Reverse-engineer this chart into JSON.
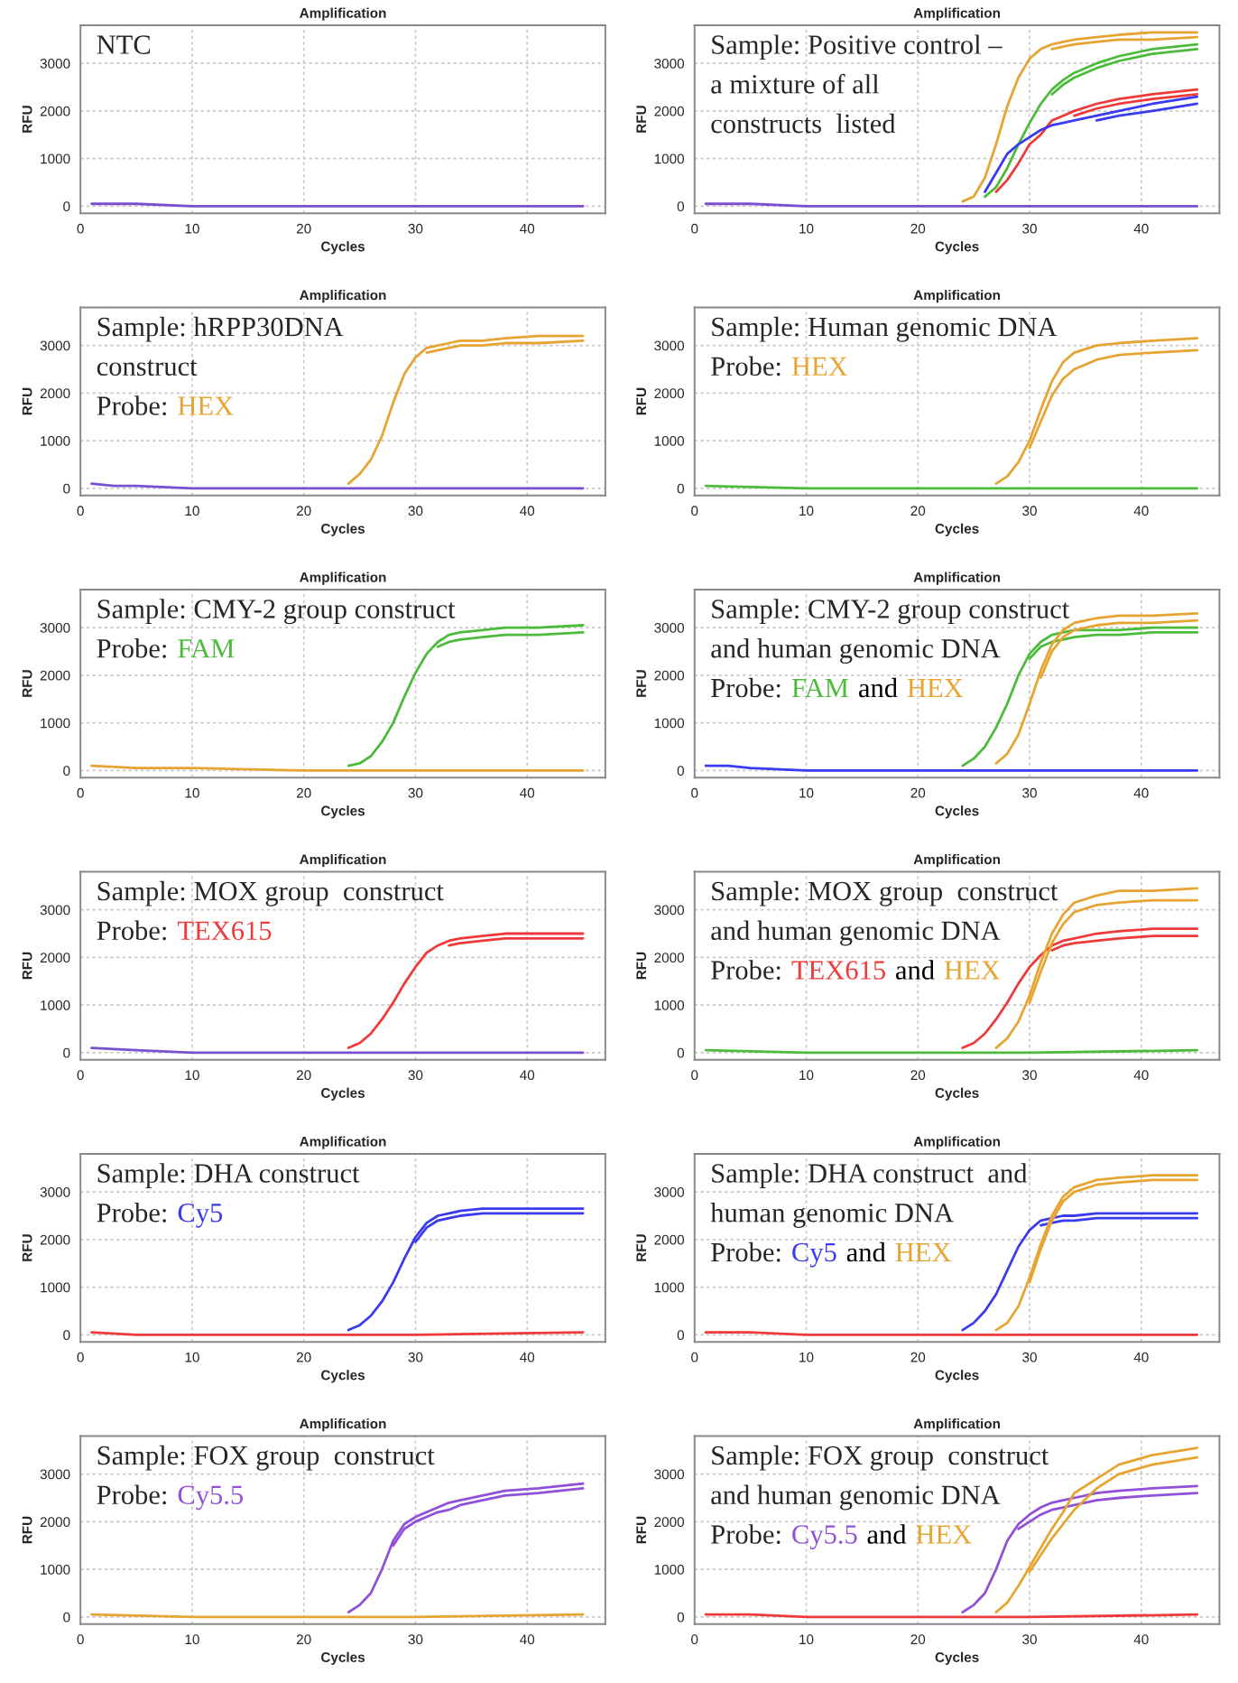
{
  "chart_data": [
    {
      "type": "line",
      "title": "Amplification",
      "xlabel": "Cycles",
      "ylabel": "RFU",
      "xlim": [
        0,
        47
      ],
      "ylim": [
        -150,
        3800
      ],
      "xticks": [
        0,
        10,
        20,
        30,
        40
      ],
      "yticks": [
        0,
        1000,
        2000,
        3000
      ],
      "grid": true,
      "annotations": [
        "NTC"
      ],
      "series": [
        {
          "color": "#7a4fd0",
          "x": [
            1,
            3,
            5,
            10,
            20,
            30,
            45
          ],
          "values": [
            50,
            50,
            50,
            0,
            0,
            0,
            0
          ]
        }
      ]
    },
    {
      "type": "line",
      "title": "Amplification",
      "xlabel": "Cycles",
      "ylabel": "RFU",
      "xlim": [
        0,
        47
      ],
      "ylim": [
        -150,
        3800
      ],
      "xticks": [
        0,
        10,
        20,
        30,
        40
      ],
      "yticks": [
        0,
        1000,
        2000,
        3000
      ],
      "grid": true,
      "annotations": [
        "Sample: Positive control –",
        "a mixture of all",
        "constructs  listed"
      ],
      "x": [
        24,
        25,
        26,
        27,
        28,
        29,
        30,
        31,
        32,
        33,
        34,
        36,
        38,
        41,
        45
      ],
      "series": [
        {
          "color": "#7a4fd0",
          "x": [
            1,
            3,
            5,
            10,
            20,
            30,
            45
          ],
          "values": [
            50,
            50,
            50,
            0,
            0,
            0,
            0
          ]
        },
        {
          "color": "#e6a532",
          "values": [
            100,
            200,
            600,
            1300,
            2100,
            2700,
            3100,
            3300,
            3400,
            3450,
            3500,
            3550,
            3600,
            3650,
            3650
          ]
        },
        {
          "color": "#e6a532",
          "x": [
            32,
            33,
            34,
            36,
            38,
            41,
            45
          ],
          "values": [
            3300,
            3350,
            3400,
            3450,
            3500,
            3500,
            3550
          ]
        },
        {
          "color": "#4cbb3c",
          "x": [
            26,
            27,
            28,
            29,
            30,
            31,
            32,
            33,
            34,
            36,
            38,
            41,
            45
          ],
          "values": [
            200,
            400,
            800,
            1300,
            1750,
            2150,
            2450,
            2650,
            2800,
            3000,
            3150,
            3300,
            3400
          ]
        },
        {
          "color": "#4cbb3c",
          "x": [
            32,
            33,
            34,
            36,
            38,
            41,
            45
          ],
          "values": [
            2350,
            2550,
            2700,
            2900,
            3050,
            3200,
            3300
          ]
        },
        {
          "color": "#f03a3a",
          "x": [
            27,
            28,
            29,
            30,
            31,
            32,
            33,
            34,
            36,
            38,
            41,
            45
          ],
          "values": [
            300,
            550,
            900,
            1300,
            1500,
            1800,
            1900,
            2000,
            2150,
            2250,
            2350,
            2450
          ]
        },
        {
          "color": "#f03a3a",
          "x": [
            34,
            36,
            38,
            41,
            45
          ],
          "values": [
            1900,
            2050,
            2150,
            2250,
            2350
          ]
        },
        {
          "color": "#3a3af0",
          "x": [
            26,
            27,
            28,
            29,
            30,
            31,
            32,
            33,
            34,
            36,
            38,
            41,
            45
          ],
          "values": [
            300,
            700,
            1100,
            1300,
            1450,
            1600,
            1700,
            1750,
            1800,
            1900,
            2000,
            2150,
            2300
          ]
        },
        {
          "color": "#3a3af0",
          "x": [
            36,
            38,
            41,
            45
          ],
          "values": [
            1800,
            1900,
            2000,
            2150
          ]
        }
      ]
    },
    {
      "type": "line",
      "title": "Amplification",
      "xlabel": "Cycles",
      "ylabel": "RFU",
      "xlim": [
        0,
        47
      ],
      "ylim": [
        -150,
        3800
      ],
      "xticks": [
        0,
        10,
        20,
        30,
        40
      ],
      "yticks": [
        0,
        1000,
        2000,
        3000
      ],
      "grid": true,
      "annotations": [
        "Sample: hRPP30DNA",
        "construct"
      ],
      "legend_title": "Probe:",
      "x": [
        24,
        25,
        26,
        27,
        28,
        29,
        30,
        31,
        32,
        33,
        34,
        36,
        38,
        41,
        45
      ],
      "series": [
        {
          "color": "#7a4fd0",
          "x": [
            1,
            3,
            5,
            10,
            20,
            30,
            45
          ],
          "values": [
            100,
            50,
            50,
            0,
            0,
            0,
            0
          ]
        },
        {
          "name": "HEX",
          "color": "#e6a532",
          "values": [
            100,
            300,
            600,
            1100,
            1800,
            2400,
            2750,
            2950,
            3000,
            3050,
            3100,
            3100,
            3150,
            3200,
            3200
          ]
        },
        {
          "color": "#e6a532",
          "x": [
            31,
            32,
            33,
            34,
            36,
            38,
            41,
            45
          ],
          "values": [
            2850,
            2900,
            2950,
            3000,
            3000,
            3050,
            3050,
            3100
          ]
        }
      ]
    },
    {
      "type": "line",
      "title": "Amplification",
      "xlabel": "Cycles",
      "ylabel": "RFU",
      "xlim": [
        0,
        47
      ],
      "ylim": [
        -150,
        3800
      ],
      "xticks": [
        0,
        10,
        20,
        30,
        40
      ],
      "yticks": [
        0,
        1000,
        2000,
        3000
      ],
      "grid": true,
      "annotations": [
        "Sample: Human genomic DNA"
      ],
      "legend_title": "Probe:",
      "series": [
        {
          "color": "#4cbb3c",
          "x": [
            1,
            10,
            20,
            30,
            45
          ],
          "values": [
            50,
            0,
            0,
            0,
            0
          ]
        },
        {
          "name": "HEX",
          "color": "#e6a532",
          "x": [
            27,
            28,
            29,
            30,
            31,
            32,
            33,
            34,
            36,
            38,
            41,
            45
          ],
          "values": [
            100,
            250,
            550,
            1000,
            1650,
            2250,
            2650,
            2850,
            3000,
            3050,
            3100,
            3150
          ]
        },
        {
          "color": "#e6a532",
          "x": [
            30,
            31,
            32,
            33,
            34,
            36,
            38,
            41,
            45
          ],
          "values": [
            850,
            1400,
            1950,
            2300,
            2500,
            2700,
            2800,
            2850,
            2900
          ]
        }
      ]
    },
    {
      "type": "line",
      "title": "Amplification",
      "xlabel": "Cycles",
      "ylabel": "RFU",
      "xlim": [
        0,
        47
      ],
      "ylim": [
        -150,
        3800
      ],
      "xticks": [
        0,
        10,
        20,
        30,
        40
      ],
      "yticks": [
        0,
        1000,
        2000,
        3000
      ],
      "grid": true,
      "annotations": [
        "Sample: CMY-2 group construct"
      ],
      "legend_title": "Probe:",
      "x": [
        24,
        25,
        26,
        27,
        28,
        29,
        30,
        31,
        32,
        33,
        34,
        36,
        38,
        41,
        45
      ],
      "series": [
        {
          "color": "#e6a532",
          "x": [
            1,
            5,
            10,
            20,
            30,
            45
          ],
          "values": [
            100,
            50,
            50,
            0,
            0,
            0
          ]
        },
        {
          "name": "FAM",
          "color": "#4cbb3c",
          "values": [
            100,
            150,
            300,
            600,
            1000,
            1550,
            2050,
            2450,
            2700,
            2850,
            2900,
            2950,
            3000,
            3000,
            3050
          ]
        },
        {
          "color": "#4cbb3c",
          "x": [
            32,
            33,
            34,
            36,
            38,
            41,
            45
          ],
          "values": [
            2600,
            2700,
            2750,
            2800,
            2850,
            2850,
            2900
          ]
        }
      ]
    },
    {
      "type": "line",
      "title": "Amplification",
      "xlabel": "Cycles",
      "ylabel": "RFU",
      "xlim": [
        0,
        47
      ],
      "ylim": [
        -150,
        3800
      ],
      "xticks": [
        0,
        10,
        20,
        30,
        40
      ],
      "yticks": [
        0,
        1000,
        2000,
        3000
      ],
      "grid": true,
      "annotations": [
        "Sample: CMY-2 group construct",
        "and human genomic DNA",
        "and"
      ],
      "legend_title": "Probe:",
      "x": [
        24,
        25,
        26,
        27,
        28,
        29,
        30,
        31,
        32,
        33,
        34,
        36,
        38,
        41,
        45
      ],
      "series": [
        {
          "color": "#3a3af0",
          "x": [
            1,
            3,
            5,
            10,
            20,
            30,
            45
          ],
          "values": [
            100,
            100,
            50,
            0,
            0,
            0,
            0
          ]
        },
        {
          "name": "FAM",
          "color": "#4cbb3c",
          "values": [
            100,
            250,
            500,
            900,
            1400,
            2000,
            2450,
            2700,
            2850,
            2900,
            2950,
            2950,
            2950,
            3000,
            3000
          ]
        },
        {
          "color": "#4cbb3c",
          "x": [
            30,
            31,
            32,
            33,
            34,
            36,
            38,
            41,
            45
          ],
          "values": [
            2350,
            2600,
            2700,
            2750,
            2800,
            2850,
            2850,
            2900,
            2900
          ]
        },
        {
          "name": "HEX",
          "color": "#e6a532",
          "x": [
            27,
            28,
            29,
            30,
            31,
            32,
            33,
            34,
            36,
            38,
            41,
            45
          ],
          "values": [
            150,
            350,
            750,
            1400,
            2100,
            2650,
            2950,
            3100,
            3200,
            3250,
            3250,
            3300
          ]
        },
        {
          "color": "#e6a532",
          "x": [
            31,
            32,
            33,
            34,
            36,
            38,
            41,
            45
          ],
          "values": [
            1950,
            2500,
            2800,
            2950,
            3050,
            3100,
            3100,
            3150
          ]
        }
      ]
    },
    {
      "type": "line",
      "title": "Amplification",
      "xlabel": "Cycles",
      "ylabel": "RFU",
      "xlim": [
        0,
        47
      ],
      "ylim": [
        -150,
        3800
      ],
      "xticks": [
        0,
        10,
        20,
        30,
        40
      ],
      "yticks": [
        0,
        1000,
        2000,
        3000
      ],
      "grid": true,
      "annotations": [
        "Sample: MOX group  construct"
      ],
      "legend_title": "Probe:",
      "x": [
        24,
        25,
        26,
        27,
        28,
        29,
        30,
        31,
        32,
        33,
        34,
        36,
        38,
        41,
        45
      ],
      "series": [
        {
          "color": "#7a4fd0",
          "x": [
            1,
            5,
            10,
            20,
            30,
            45
          ],
          "values": [
            100,
            50,
            0,
            0,
            0,
            0
          ]
        },
        {
          "name": "TEX615",
          "color": "#f03a3a",
          "values": [
            100,
            200,
            400,
            700,
            1050,
            1450,
            1800,
            2100,
            2250,
            2350,
            2400,
            2450,
            2500,
            2500,
            2500
          ]
        },
        {
          "color": "#f03a3a",
          "x": [
            33,
            34,
            36,
            38,
            41,
            45
          ],
          "values": [
            2250,
            2300,
            2350,
            2400,
            2400,
            2400
          ]
        }
      ]
    },
    {
      "type": "line",
      "title": "Amplification",
      "xlabel": "Cycles",
      "ylabel": "RFU",
      "xlim": [
        0,
        47
      ],
      "ylim": [
        -150,
        3800
      ],
      "xticks": [
        0,
        10,
        20,
        30,
        40
      ],
      "yticks": [
        0,
        1000,
        2000,
        3000
      ],
      "grid": true,
      "annotations": [
        "Sample: MOX group  construct",
        "and human genomic DNA",
        "and"
      ],
      "legend_title": "Probe:",
      "x": [
        24,
        25,
        26,
        27,
        28,
        29,
        30,
        31,
        32,
        33,
        34,
        36,
        38,
        41,
        45
      ],
      "series": [
        {
          "color": "#4cbb3c",
          "x": [
            1,
            10,
            20,
            30,
            45
          ],
          "values": [
            50,
            0,
            0,
            0,
            50
          ]
        },
        {
          "name": "TEX615",
          "color": "#f03a3a",
          "values": [
            100,
            200,
            400,
            700,
            1050,
            1450,
            1800,
            2050,
            2250,
            2350,
            2400,
            2500,
            2550,
            2600,
            2600
          ]
        },
        {
          "color": "#f03a3a",
          "x": [
            32,
            33,
            34,
            36,
            38,
            41,
            45
          ],
          "values": [
            2150,
            2250,
            2300,
            2350,
            2400,
            2450,
            2450
          ]
        },
        {
          "name": "HEX",
          "color": "#e6a532",
          "x": [
            27,
            28,
            29,
            30,
            31,
            32,
            33,
            34,
            36,
            38,
            41,
            45
          ],
          "values": [
            100,
            300,
            650,
            1200,
            1900,
            2500,
            2900,
            3150,
            3300,
            3400,
            3400,
            3450
          ]
        },
        {
          "color": "#e6a532",
          "x": [
            30,
            31,
            32,
            33,
            34,
            36,
            38,
            41,
            45
          ],
          "values": [
            1050,
            1700,
            2300,
            2700,
            2950,
            3100,
            3150,
            3200,
            3200
          ]
        }
      ]
    },
    {
      "type": "line",
      "title": "Amplification",
      "xlabel": "Cycles",
      "ylabel": "RFU",
      "xlim": [
        0,
        47
      ],
      "ylim": [
        -150,
        3800
      ],
      "xticks": [
        0,
        10,
        20,
        30,
        40
      ],
      "yticks": [
        0,
        1000,
        2000,
        3000
      ],
      "grid": true,
      "annotations": [
        "Sample: DHA construct"
      ],
      "legend_title": "Probe:",
      "x": [
        24,
        25,
        26,
        27,
        28,
        29,
        30,
        31,
        32,
        33,
        34,
        36,
        38,
        41,
        45
      ],
      "series": [
        {
          "color": "#f03a3a",
          "x": [
            1,
            5,
            10,
            20,
            30,
            45
          ],
          "values": [
            50,
            0,
            0,
            0,
            0,
            50
          ]
        },
        {
          "name": "Cy5",
          "color": "#3a3af0",
          "values": [
            100,
            200,
            400,
            700,
            1100,
            1600,
            2050,
            2350,
            2500,
            2550,
            2600,
            2650,
            2650,
            2650,
            2650
          ]
        },
        {
          "color": "#3a3af0",
          "x": [
            30,
            31,
            32,
            33,
            34,
            36,
            38,
            41,
            45
          ],
          "values": [
            1950,
            2250,
            2400,
            2450,
            2500,
            2550,
            2550,
            2550,
            2550
          ]
        }
      ]
    },
    {
      "type": "line",
      "title": "Amplification",
      "xlabel": "Cycles",
      "ylabel": "RFU",
      "xlim": [
        0,
        47
      ],
      "ylim": [
        -150,
        3800
      ],
      "xticks": [
        0,
        10,
        20,
        30,
        40
      ],
      "yticks": [
        0,
        1000,
        2000,
        3000
      ],
      "grid": true,
      "annotations": [
        "Sample: DHA construct  and",
        "human genomic DNA",
        "and"
      ],
      "legend_title": "Probe:",
      "x": [
        24,
        25,
        26,
        27,
        28,
        29,
        30,
        31,
        32,
        33,
        34,
        36,
        38,
        41,
        45
      ],
      "series": [
        {
          "color": "#f03a3a",
          "x": [
            1,
            5,
            10,
            20,
            30,
            45
          ],
          "values": [
            50,
            50,
            0,
            0,
            0,
            0
          ]
        },
        {
          "name": "Cy5",
          "color": "#3a3af0",
          "values": [
            100,
            250,
            500,
            850,
            1350,
            1850,
            2200,
            2400,
            2450,
            2500,
            2500,
            2550,
            2550,
            2550,
            2550
          ]
        },
        {
          "color": "#3a3af0",
          "x": [
            31,
            32,
            33,
            34,
            36,
            38,
            41,
            45
          ],
          "values": [
            2300,
            2350,
            2400,
            2400,
            2450,
            2450,
            2450,
            2450
          ]
        },
        {
          "name": "HEX",
          "color": "#e6a532",
          "x": [
            27,
            28,
            29,
            30,
            31,
            32,
            33,
            34,
            36,
            38,
            41,
            45
          ],
          "values": [
            100,
            250,
            600,
            1200,
            1900,
            2500,
            2900,
            3100,
            3250,
            3300,
            3350,
            3350
          ]
        },
        {
          "color": "#e6a532",
          "x": [
            30,
            31,
            32,
            33,
            34,
            36,
            38,
            41,
            45
          ],
          "values": [
            1100,
            1800,
            2400,
            2800,
            3000,
            3150,
            3200,
            3250,
            3250
          ]
        }
      ]
    },
    {
      "type": "line",
      "title": "Amplification",
      "xlabel": "Cycles",
      "ylabel": "RFU",
      "xlim": [
        0,
        47
      ],
      "ylim": [
        -150,
        3800
      ],
      "xticks": [
        0,
        10,
        20,
        30,
        40
      ],
      "yticks": [
        0,
        1000,
        2000,
        3000
      ],
      "grid": true,
      "annotations": [
        "Sample: FOX group  construct"
      ],
      "legend_title": "Probe:",
      "x": [
        24,
        25,
        26,
        27,
        28,
        29,
        30,
        31,
        32,
        33,
        34,
        36,
        38,
        41,
        45
      ],
      "series": [
        {
          "color": "#e6a532",
          "x": [
            1,
            10,
            20,
            30,
            45
          ],
          "values": [
            50,
            0,
            0,
            0,
            50
          ]
        },
        {
          "name": "Cy5.5",
          "color": "#9050d8",
          "values": [
            100,
            250,
            500,
            1000,
            1600,
            1950,
            2100,
            2200,
            2300,
            2400,
            2450,
            2550,
            2650,
            2700,
            2800
          ]
        },
        {
          "color": "#9050d8",
          "x": [
            28,
            29,
            30,
            31,
            32,
            33,
            34,
            36,
            38,
            41,
            45
          ],
          "values": [
            1500,
            1850,
            2000,
            2100,
            2200,
            2250,
            2350,
            2450,
            2550,
            2600,
            2700
          ]
        }
      ]
    },
    {
      "type": "line",
      "title": "Amplification",
      "xlabel": "Cycles",
      "ylabel": "RFU",
      "xlim": [
        0,
        47
      ],
      "ylim": [
        -150,
        3800
      ],
      "xticks": [
        0,
        10,
        20,
        30,
        40
      ],
      "yticks": [
        0,
        1000,
        2000,
        3000
      ],
      "grid": true,
      "annotations": [
        "Sample: FOX group  construct",
        "and human genomic DNA",
        "and"
      ],
      "legend_title": "Probe:",
      "x": [
        24,
        25,
        26,
        27,
        28,
        29,
        30,
        31,
        32,
        33,
        34,
        36,
        38,
        41,
        45
      ],
      "series": [
        {
          "color": "#f03a3a",
          "x": [
            1,
            5,
            10,
            20,
            30,
            45
          ],
          "values": [
            50,
            50,
            0,
            0,
            0,
            50
          ]
        },
        {
          "name": "Cy5.5",
          "color": "#9050d8",
          "values": [
            100,
            250,
            500,
            1000,
            1600,
            1950,
            2150,
            2300,
            2400,
            2450,
            2500,
            2600,
            2650,
            2700,
            2750
          ]
        },
        {
          "color": "#9050d8",
          "x": [
            29,
            30,
            31,
            32,
            33,
            34,
            36,
            38,
            41,
            45
          ],
          "values": [
            1850,
            2000,
            2150,
            2250,
            2300,
            2350,
            2450,
            2500,
            2550,
            2600
          ]
        },
        {
          "name": "HEX",
          "color": "#e6a532",
          "x": [
            27,
            28,
            29,
            30,
            31,
            32,
            33,
            34,
            36,
            38,
            41,
            45
          ],
          "values": [
            100,
            300,
            650,
            1050,
            1450,
            1850,
            2200,
            2600,
            2900,
            3200,
            3400,
            3550
          ]
        },
        {
          "color": "#e6a532",
          "x": [
            30,
            31,
            32,
            33,
            34,
            36,
            38,
            41,
            45
          ],
          "values": [
            950,
            1300,
            1650,
            1950,
            2250,
            2700,
            3000,
            3200,
            3350
          ]
        }
      ]
    }
  ]
}
